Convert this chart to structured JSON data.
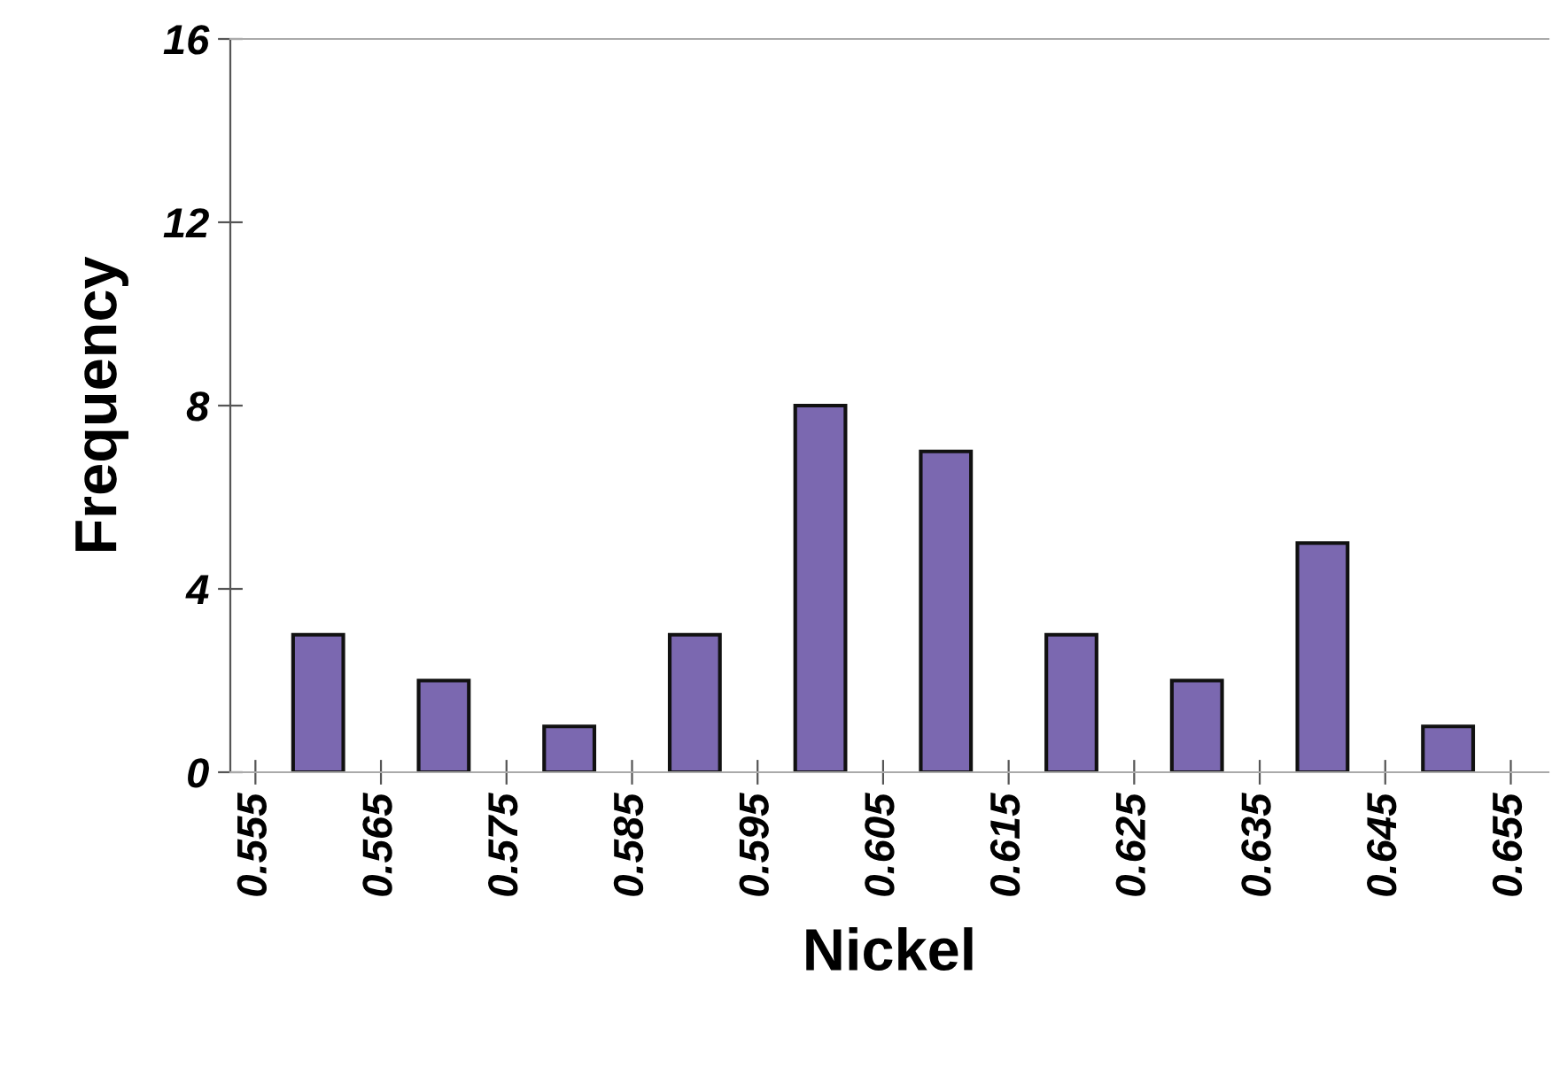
{
  "chart_data": {
    "type": "histogram",
    "xlabel": "Nickel",
    "ylabel": "Frequency",
    "bins": [
      0.555,
      0.565,
      0.575,
      0.585,
      0.595,
      0.605,
      0.615,
      0.625,
      0.635,
      0.645,
      0.655
    ],
    "values": [
      3,
      2,
      1,
      3,
      8,
      7,
      3,
      2,
      5,
      1
    ],
    "color": "#7b68b0",
    "xlim": [
      0.553,
      0.658
    ],
    "xticks": [
      0.555,
      0.565,
      0.575,
      0.585,
      0.595,
      0.605,
      0.615,
      0.625,
      0.635,
      0.645,
      0.655
    ],
    "ylim": [
      0,
      16
    ],
    "yticks": [
      0,
      4,
      8,
      12,
      16
    ],
    "grid": false,
    "legend": false
  }
}
